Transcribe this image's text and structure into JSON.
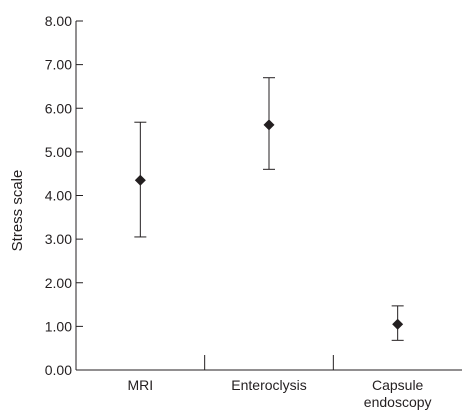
{
  "chart_data": {
    "type": "scatter",
    "ylabel": "Stress scale",
    "xlabel": "",
    "ylim": [
      0,
      8
    ],
    "yticks": [
      "0.00",
      "1.00",
      "2.00",
      "3.00",
      "4.00",
      "5.00",
      "6.00",
      "7.00",
      "8.00"
    ],
    "categories": [
      {
        "label_lines": [
          "MRI"
        ]
      },
      {
        "label_lines": [
          "Enteroclysis"
        ]
      },
      {
        "label_lines": [
          "Capsule",
          "endoscopy"
        ]
      }
    ],
    "points": [
      {
        "category": "MRI",
        "mean": 4.35,
        "lower": 3.05,
        "upper": 5.68
      },
      {
        "category": "Enteroclysis",
        "mean": 5.62,
        "lower": 4.6,
        "upper": 6.7
      },
      {
        "category": "Capsule endoscopy",
        "mean": 1.05,
        "lower": 0.68,
        "upper": 1.47
      }
    ],
    "marker": "diamond",
    "grid": false,
    "legend": "none",
    "colors": {
      "ink": "#231f20"
    }
  }
}
